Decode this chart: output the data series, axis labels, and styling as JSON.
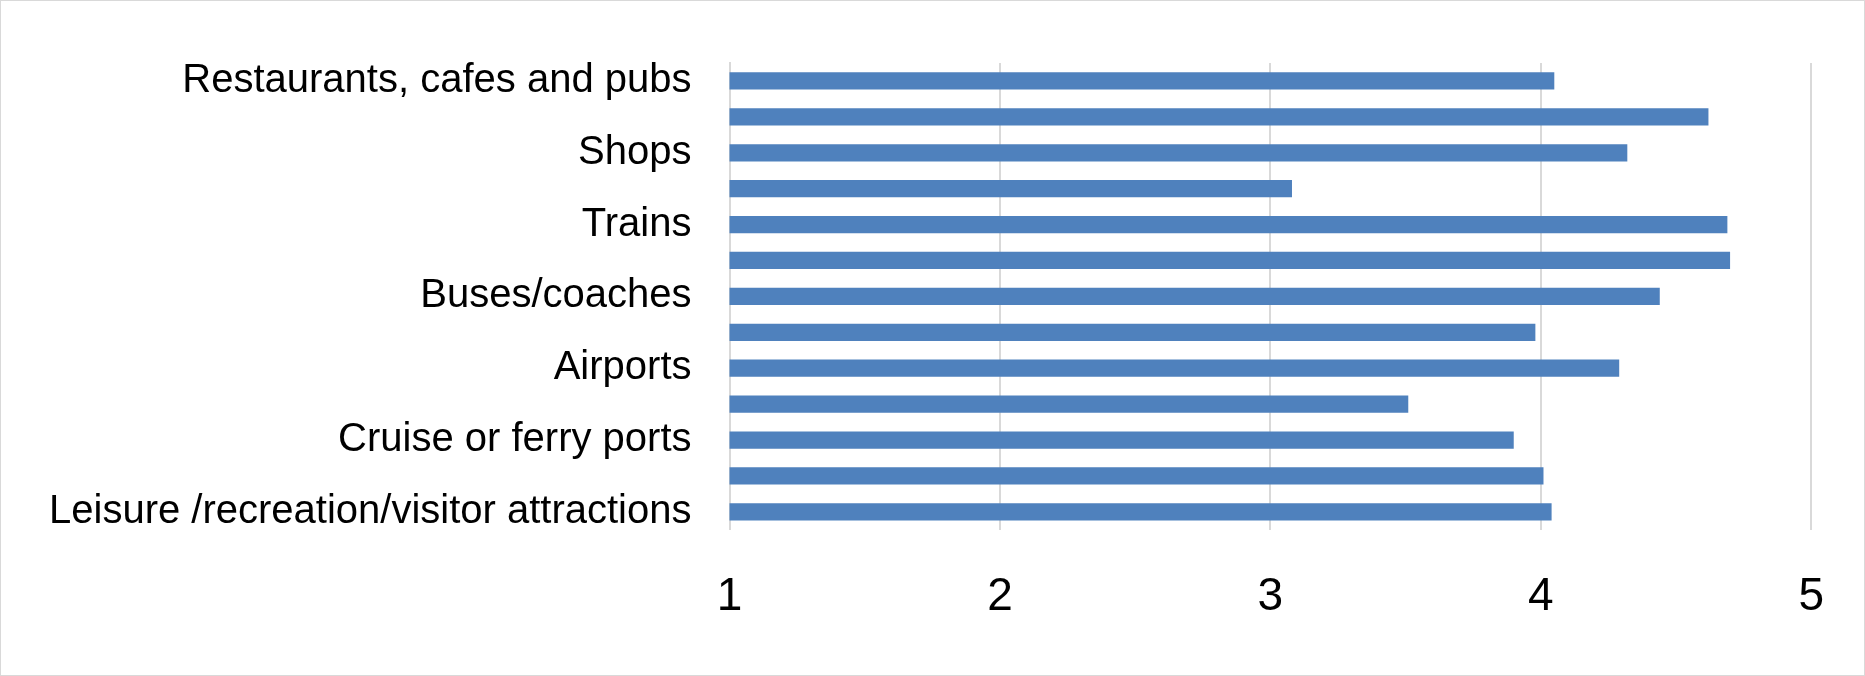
{
  "chart_data": {
    "type": "bar",
    "orientation": "horizontal",
    "categories": [
      "Restaurants, cafes and pubs",
      null,
      "Shops",
      null,
      "Trains",
      null,
      "Buses/coaches",
      null,
      "Airports",
      null,
      "Cruise or ferry ports",
      null,
      "Leisure /recreation/visitor attractions"
    ],
    "values": [
      4.05,
      4.62,
      4.32,
      3.08,
      4.69,
      4.7,
      4.44,
      3.98,
      4.29,
      3.51,
      3.9,
      4.01,
      4.04
    ],
    "color": "#4f81bd",
    "xlim": [
      1,
      5
    ],
    "xticks": [
      1,
      2,
      3,
      4,
      5
    ],
    "grid": "x",
    "legend": false
  }
}
